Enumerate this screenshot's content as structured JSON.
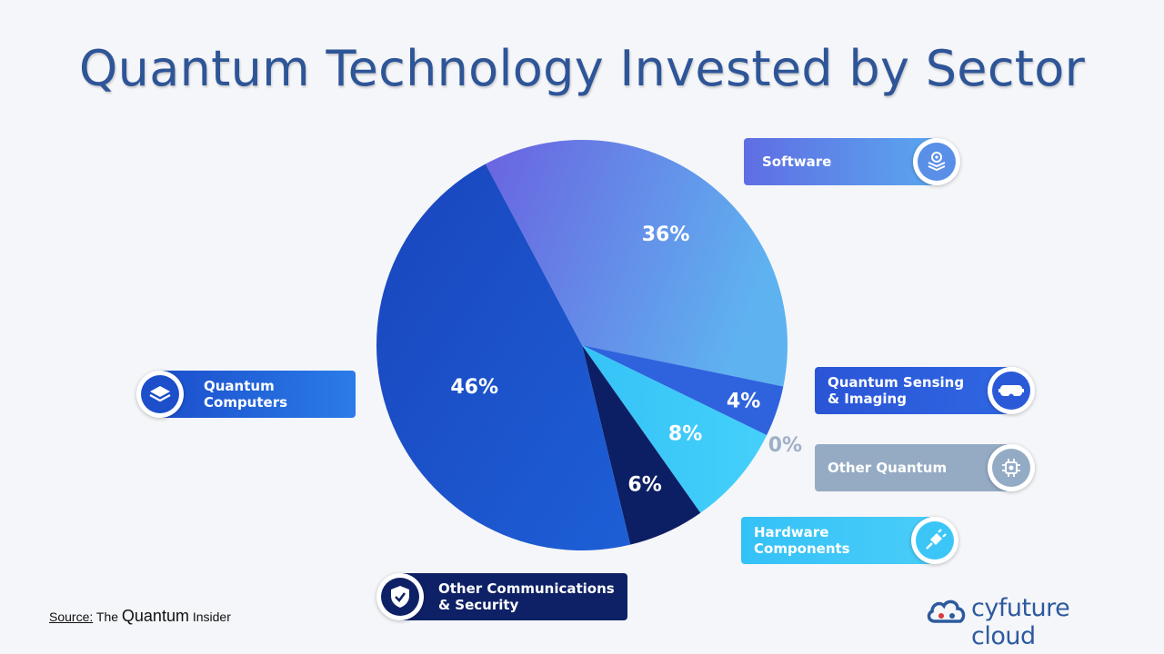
{
  "title": "Quantum Technology Invested by Sector",
  "chart_data": {
    "type": "pie",
    "title": "Quantum Technology Invested by Sector",
    "slices": [
      {
        "label": "Software",
        "value": 36,
        "display": "36%",
        "color": "#5b8de6",
        "icon": "layers-gear-icon"
      },
      {
        "label": "Quantum Sensing\n& Imaging",
        "value": 4,
        "display": "4%",
        "color": "#2f63de",
        "icon": "vr-headset-icon"
      },
      {
        "label": "Other Quantum",
        "value": 0,
        "display": "0%",
        "color": "#94adc8",
        "icon": "chip-icon"
      },
      {
        "label": "Hardware\nComponents",
        "value": 8,
        "display": "8%",
        "color": "#3fc7f7",
        "icon": "plug-icon"
      },
      {
        "label": "Other Communications\n& Security",
        "value": 6,
        "display": "6%",
        "color": "#0c1f64",
        "icon": "shield-check-icon"
      },
      {
        "label": "Quantum\nComputers",
        "value": 46,
        "display": "46%",
        "color": "#1f4fc7",
        "icon": "stack-layers-icon"
      }
    ]
  },
  "source": {
    "label": "Source:",
    "the": "The",
    "quantum": "Quantum",
    "insider": "Insider"
  },
  "logo": {
    "text": "cyfuture cloud",
    "icon": "cloud-logo-icon"
  }
}
